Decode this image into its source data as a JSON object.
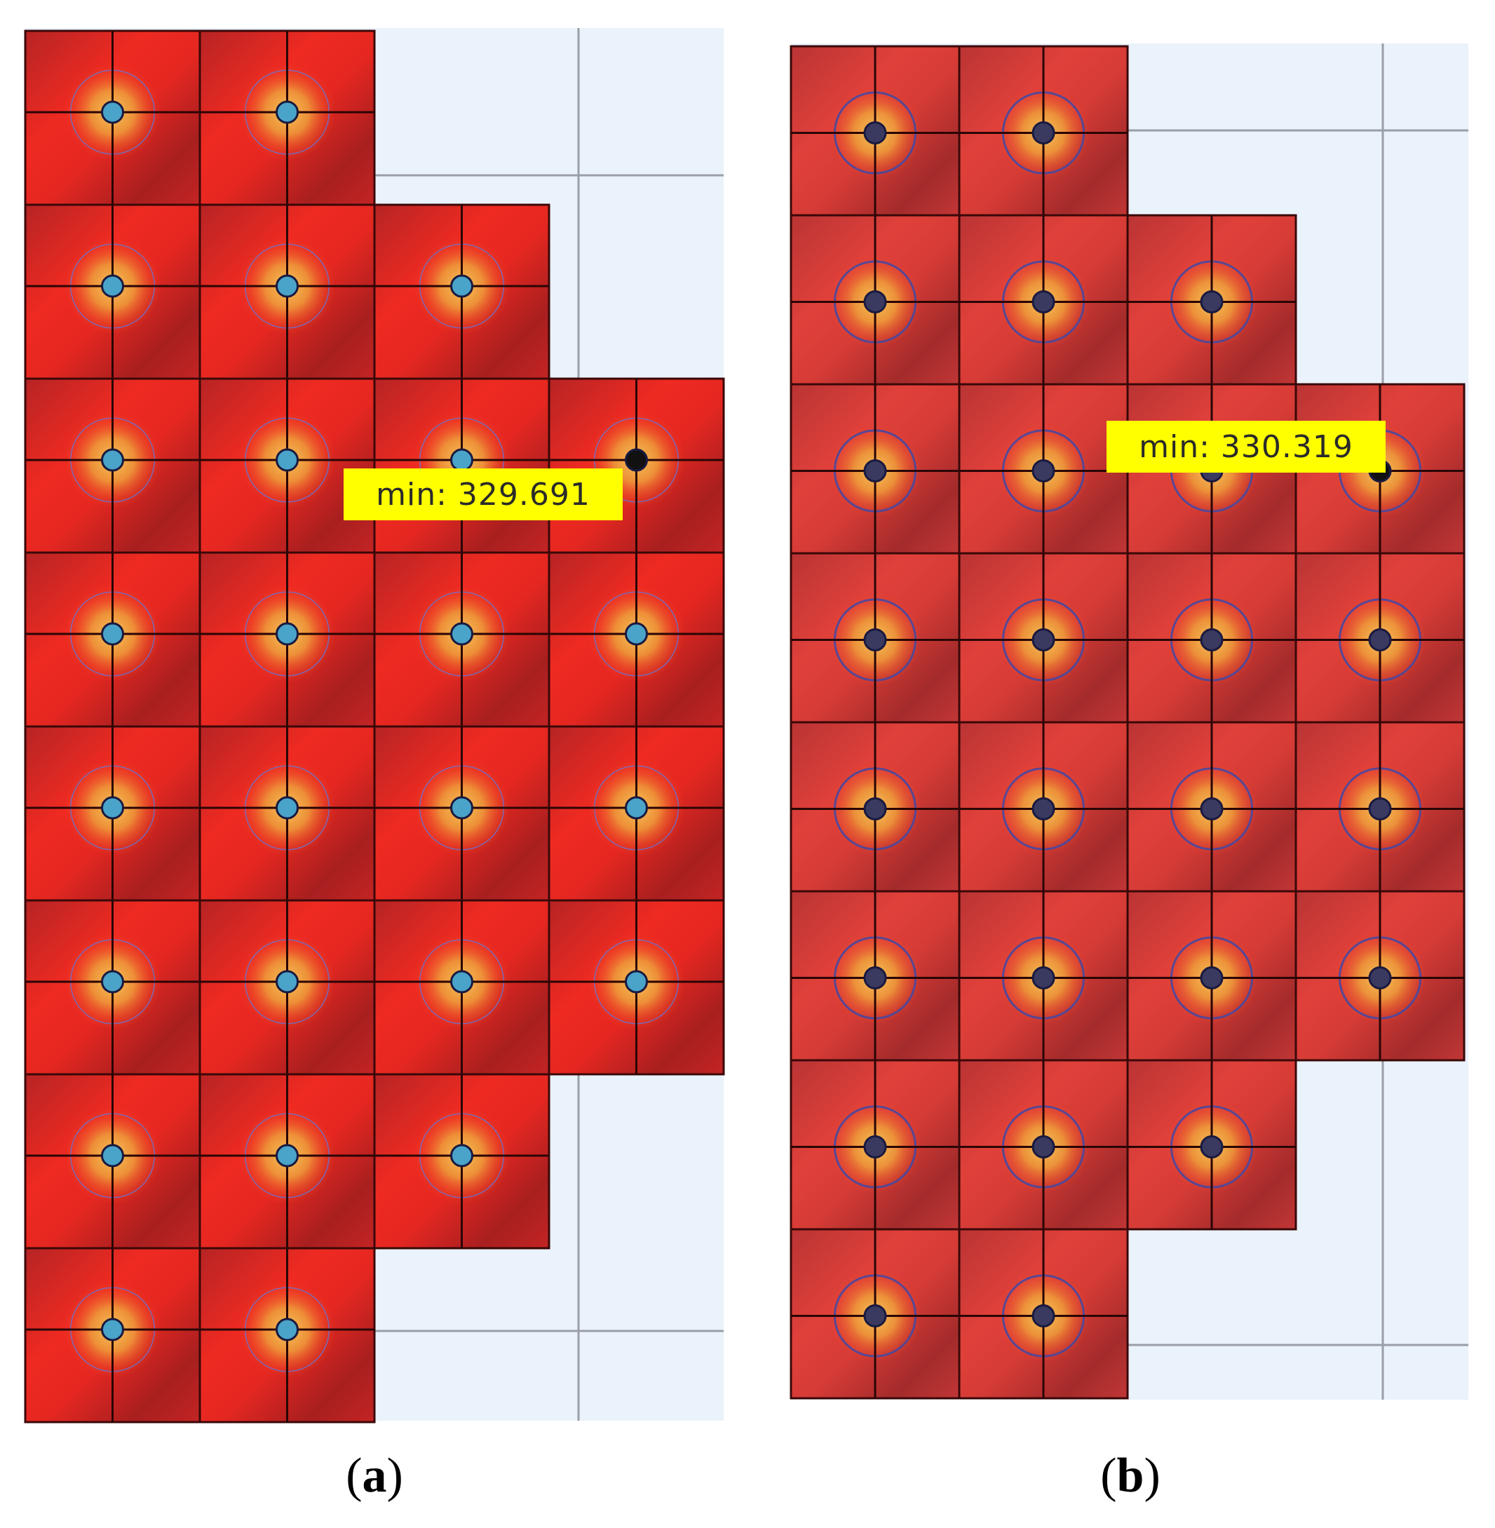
{
  "panels": [
    {
      "id": "a",
      "caption_prefix": "(",
      "caption_letter": "a",
      "caption_suffix": ")",
      "min_label": "min: 329.691",
      "row_counts": [
        2,
        3,
        4,
        4,
        4,
        4,
        3,
        2
      ],
      "min_cell": {
        "row": 2,
        "col": 3
      },
      "center_color": "#4aa3c8"
    },
    {
      "id": "b",
      "caption_prefix": "(",
      "caption_letter": "b",
      "caption_suffix": ")",
      "min_label": "min: 330.319",
      "row_counts": [
        2,
        3,
        4,
        4,
        4,
        4,
        3,
        2
      ],
      "min_cell": {
        "row": 2,
        "col": 3
      },
      "center_color": "#3a3a60"
    }
  ],
  "colors": {
    "tile_hot": "#ee2a22",
    "tile_dark": "#a82020",
    "glow": "#f2b04a",
    "label_bg": "#ffff00",
    "background": "#eaf2fb"
  }
}
